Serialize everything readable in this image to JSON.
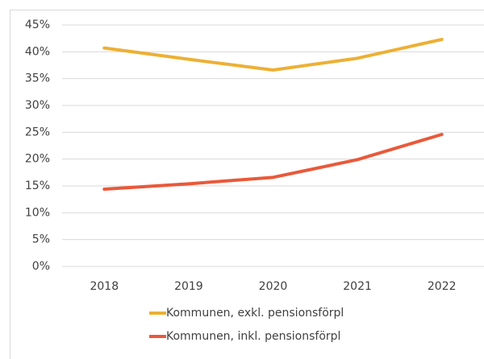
{
  "chart_data": {
    "type": "line",
    "categories": [
      "2018",
      "2019",
      "2020",
      "2021",
      "2022"
    ],
    "series": [
      {
        "name": "Kommunen, exkl. pensionsförpl",
        "color": "#EDB034",
        "values": [
          40.7,
          38.6,
          36.6,
          38.8,
          42.3
        ]
      },
      {
        "name": "Kommunen, inkl. pensionsförpl",
        "color": "#E9593A",
        "values": [
          14.4,
          15.4,
          16.6,
          19.9,
          24.6
        ]
      }
    ],
    "ylim": [
      0,
      45
    ],
    "yticks": [
      {
        "value": 0,
        "label": "0%"
      },
      {
        "value": 5,
        "label": "5%"
      },
      {
        "value": 10,
        "label": "10%"
      },
      {
        "value": 15,
        "label": "15%"
      },
      {
        "value": 20,
        "label": "20%"
      },
      {
        "value": 25,
        "label": "25%"
      },
      {
        "value": 30,
        "label": "30%"
      },
      {
        "value": 35,
        "label": "35%"
      },
      {
        "value": 40,
        "label": "40%"
      },
      {
        "value": 45,
        "label": "45%"
      }
    ],
    "grid": true
  }
}
